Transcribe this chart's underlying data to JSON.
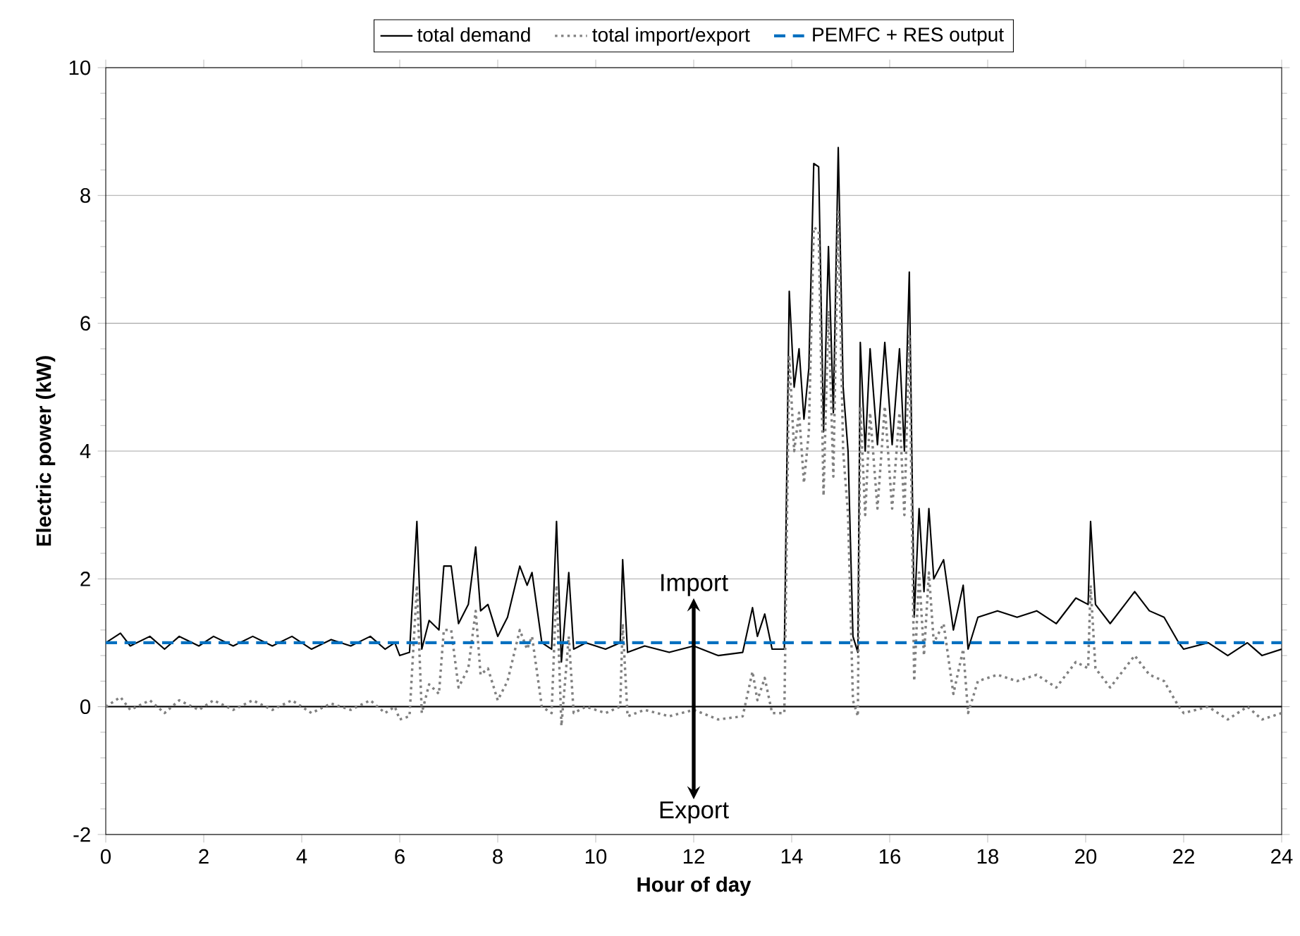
{
  "chart_data": {
    "type": "line",
    "xlabel": "Hour of day",
    "ylabel": "Electric power (kW)",
    "xlim": [
      0,
      24
    ],
    "ylim": [
      -2,
      10
    ],
    "xticks": [
      0,
      2,
      4,
      6,
      8,
      10,
      12,
      14,
      16,
      18,
      20,
      22,
      24
    ],
    "yticks": [
      -2,
      0,
      2,
      4,
      6,
      8,
      10
    ],
    "grid": "y",
    "legend": "top",
    "ref_lines": [
      {
        "axis": "y",
        "value": 0,
        "color": "#000000"
      }
    ],
    "annotations": [
      "Import",
      "Export"
    ],
    "series": [
      {
        "name": "total demand",
        "color": "#000000",
        "line_style": "solid",
        "x": [
          0,
          0.3,
          0.5,
          0.9,
          1.2,
          1.5,
          1.9,
          2.2,
          2.6,
          3.0,
          3.4,
          3.8,
          4.2,
          4.6,
          5.0,
          5.4,
          5.7,
          5.9,
          6.0,
          6.2,
          6.35,
          6.45,
          6.6,
          6.8,
          6.9,
          7.05,
          7.2,
          7.4,
          7.55,
          7.65,
          7.8,
          8.0,
          8.2,
          8.45,
          8.6,
          8.7,
          8.9,
          9.1,
          9.2,
          9.3,
          9.45,
          9.55,
          9.8,
          10.2,
          10.5,
          10.55,
          10.65,
          11.0,
          11.5,
          12.0,
          12.5,
          13.0,
          13.2,
          13.3,
          13.45,
          13.6,
          13.85,
          13.95,
          14.05,
          14.15,
          14.25,
          14.35,
          14.45,
          14.55,
          14.65,
          14.75,
          14.85,
          14.95,
          15.05,
          15.15,
          15.25,
          15.35,
          15.4,
          15.5,
          15.6,
          15.75,
          15.9,
          16.05,
          16.2,
          16.3,
          16.4,
          16.5,
          16.6,
          16.7,
          16.8,
          16.9,
          17.1,
          17.3,
          17.5,
          17.6,
          17.8,
          18.2,
          18.6,
          19.0,
          19.4,
          19.8,
          20.05,
          20.1,
          20.2,
          20.5,
          20.8,
          21.0,
          21.3,
          21.6,
          21.9,
          22.0,
          22.5,
          22.9,
          23.3,
          23.6,
          24.0
        ],
        "values": [
          1.0,
          1.15,
          0.95,
          1.1,
          0.9,
          1.1,
          0.95,
          1.1,
          0.95,
          1.1,
          0.95,
          1.1,
          0.9,
          1.05,
          0.95,
          1.1,
          0.9,
          1.0,
          0.8,
          0.85,
          2.9,
          0.9,
          1.35,
          1.2,
          2.2,
          2.2,
          1.3,
          1.6,
          2.5,
          1.5,
          1.6,
          1.1,
          1.4,
          2.2,
          1.9,
          2.1,
          1.0,
          0.9,
          2.9,
          0.7,
          2.1,
          0.9,
          1.0,
          0.9,
          1.0,
          2.3,
          0.85,
          0.95,
          0.85,
          0.95,
          0.8,
          0.85,
          1.55,
          1.1,
          1.45,
          0.9,
          0.9,
          6.5,
          5.0,
          5.6,
          4.5,
          5.3,
          8.5,
          8.45,
          4.3,
          7.2,
          4.6,
          8.75,
          5.0,
          4.0,
          1.1,
          0.85,
          5.7,
          4.0,
          5.6,
          4.1,
          5.7,
          4.1,
          5.6,
          4.0,
          6.8,
          1.4,
          3.1,
          1.8,
          3.1,
          2.0,
          2.3,
          1.2,
          1.9,
          0.9,
          1.4,
          1.5,
          1.4,
          1.5,
          1.3,
          1.7,
          1.6,
          2.9,
          1.6,
          1.3,
          1.6,
          1.8,
          1.5,
          1.4,
          1.0,
          0.9,
          1.0,
          0.8,
          1.0,
          0.8,
          0.9
        ]
      },
      {
        "name": "total import/export",
        "color": "#808080",
        "line_style": "dotted",
        "x": [
          0,
          0.3,
          0.5,
          0.9,
          1.2,
          1.5,
          1.9,
          2.2,
          2.6,
          3.0,
          3.4,
          3.8,
          4.2,
          4.6,
          5.0,
          5.4,
          5.7,
          5.9,
          6.0,
          6.2,
          6.35,
          6.45,
          6.6,
          6.8,
          6.9,
          7.05,
          7.2,
          7.4,
          7.55,
          7.65,
          7.8,
          8.0,
          8.2,
          8.45,
          8.6,
          8.7,
          8.9,
          9.1,
          9.2,
          9.3,
          9.45,
          9.55,
          9.8,
          10.2,
          10.5,
          10.55,
          10.65,
          11.0,
          11.5,
          12.0,
          12.5,
          13.0,
          13.2,
          13.3,
          13.45,
          13.6,
          13.85,
          13.95,
          14.05,
          14.15,
          14.25,
          14.35,
          14.45,
          14.55,
          14.65,
          14.75,
          14.85,
          14.95,
          15.05,
          15.15,
          15.25,
          15.35,
          15.4,
          15.5,
          15.6,
          15.75,
          15.9,
          16.05,
          16.2,
          16.3,
          16.4,
          16.5,
          16.6,
          16.7,
          16.8,
          16.9,
          17.1,
          17.3,
          17.5,
          17.6,
          17.8,
          18.2,
          18.6,
          19.0,
          19.4,
          19.8,
          20.05,
          20.1,
          20.2,
          20.5,
          20.8,
          21.0,
          21.3,
          21.6,
          21.9,
          22.0,
          22.5,
          22.9,
          23.3,
          23.6,
          24.0
        ],
        "values": [
          0.0,
          0.15,
          -0.05,
          0.1,
          -0.1,
          0.1,
          -0.05,
          0.1,
          -0.05,
          0.1,
          -0.05,
          0.1,
          -0.1,
          0.05,
          -0.05,
          0.1,
          -0.1,
          0.0,
          -0.2,
          -0.15,
          1.9,
          -0.1,
          0.35,
          0.2,
          1.2,
          1.2,
          0.3,
          0.6,
          1.5,
          0.5,
          0.6,
          0.1,
          0.4,
          1.2,
          0.9,
          1.1,
          0.0,
          -0.1,
          1.9,
          -0.3,
          1.1,
          -0.1,
          0.0,
          -0.1,
          0.0,
          1.3,
          -0.15,
          -0.05,
          -0.15,
          -0.05,
          -0.2,
          -0.15,
          0.55,
          0.1,
          0.45,
          -0.1,
          -0.1,
          5.5,
          4.0,
          4.6,
          3.5,
          4.3,
          7.5,
          7.45,
          3.3,
          6.2,
          3.6,
          7.75,
          4.0,
          3.0,
          0.1,
          -0.15,
          4.7,
          3.0,
          4.6,
          3.1,
          4.7,
          3.1,
          4.6,
          3.0,
          5.8,
          0.4,
          2.1,
          0.8,
          2.1,
          1.0,
          1.3,
          0.2,
          0.9,
          -0.1,
          0.4,
          0.5,
          0.4,
          0.5,
          0.3,
          0.7,
          0.6,
          1.9,
          0.6,
          0.3,
          0.6,
          0.8,
          0.5,
          0.4,
          0.0,
          -0.1,
          0.0,
          -0.2,
          0.0,
          -0.2,
          -0.1
        ]
      },
      {
        "name": "PEMFC + RES output",
        "color": "#0070c0",
        "line_style": "dashed",
        "x": [
          0,
          24
        ],
        "values": [
          1.0,
          1.0
        ]
      }
    ]
  }
}
